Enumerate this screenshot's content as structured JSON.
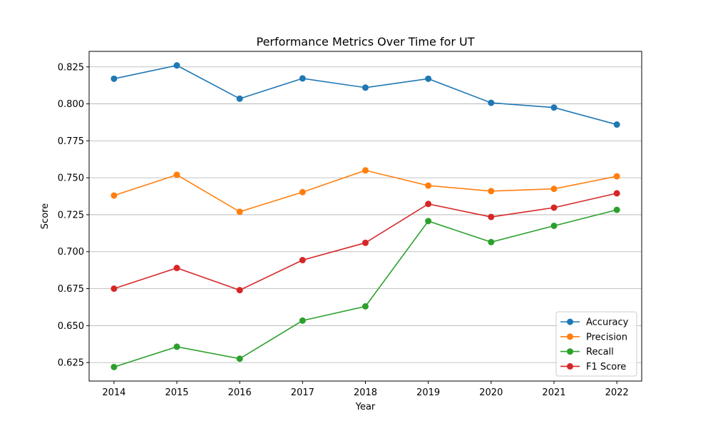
{
  "chart_data": {
    "type": "line",
    "title": "Performance Metrics Over Time for UT",
    "xlabel": "Year",
    "ylabel": "Score",
    "x": [
      2014,
      2015,
      2016,
      2017,
      2018,
      2019,
      2020,
      2021,
      2022
    ],
    "ylim": [
      0.6125,
      0.8355
    ],
    "yticks": [
      0.625,
      0.65,
      0.675,
      0.7,
      0.725,
      0.75,
      0.775,
      0.8,
      0.825
    ],
    "ytick_labels": [
      "0.625",
      "0.650",
      "0.675",
      "0.700",
      "0.725",
      "0.750",
      "0.775",
      "0.800",
      "0.825"
    ],
    "grid": "horizontal",
    "legend_position": "lower-right",
    "series": [
      {
        "name": "Accuracy",
        "color": "#1f77b4",
        "values": [
          0.817,
          0.826,
          0.8035,
          0.8172,
          0.811,
          0.817,
          0.8007,
          0.7975,
          0.786
        ]
      },
      {
        "name": "Precision",
        "color": "#ff7f0e",
        "values": [
          0.738,
          0.752,
          0.727,
          0.7403,
          0.755,
          0.7447,
          0.741,
          0.7425,
          0.751
        ]
      },
      {
        "name": "Recall",
        "color": "#2ca02c",
        "values": [
          0.622,
          0.6357,
          0.6276,
          0.6534,
          0.663,
          0.7207,
          0.7065,
          0.7175,
          0.7283
        ]
      },
      {
        "name": "F1 Score",
        "color": "#d62728",
        "values": [
          0.675,
          0.689,
          0.674,
          0.6943,
          0.706,
          0.7323,
          0.7235,
          0.7298,
          0.7395
        ]
      }
    ]
  }
}
